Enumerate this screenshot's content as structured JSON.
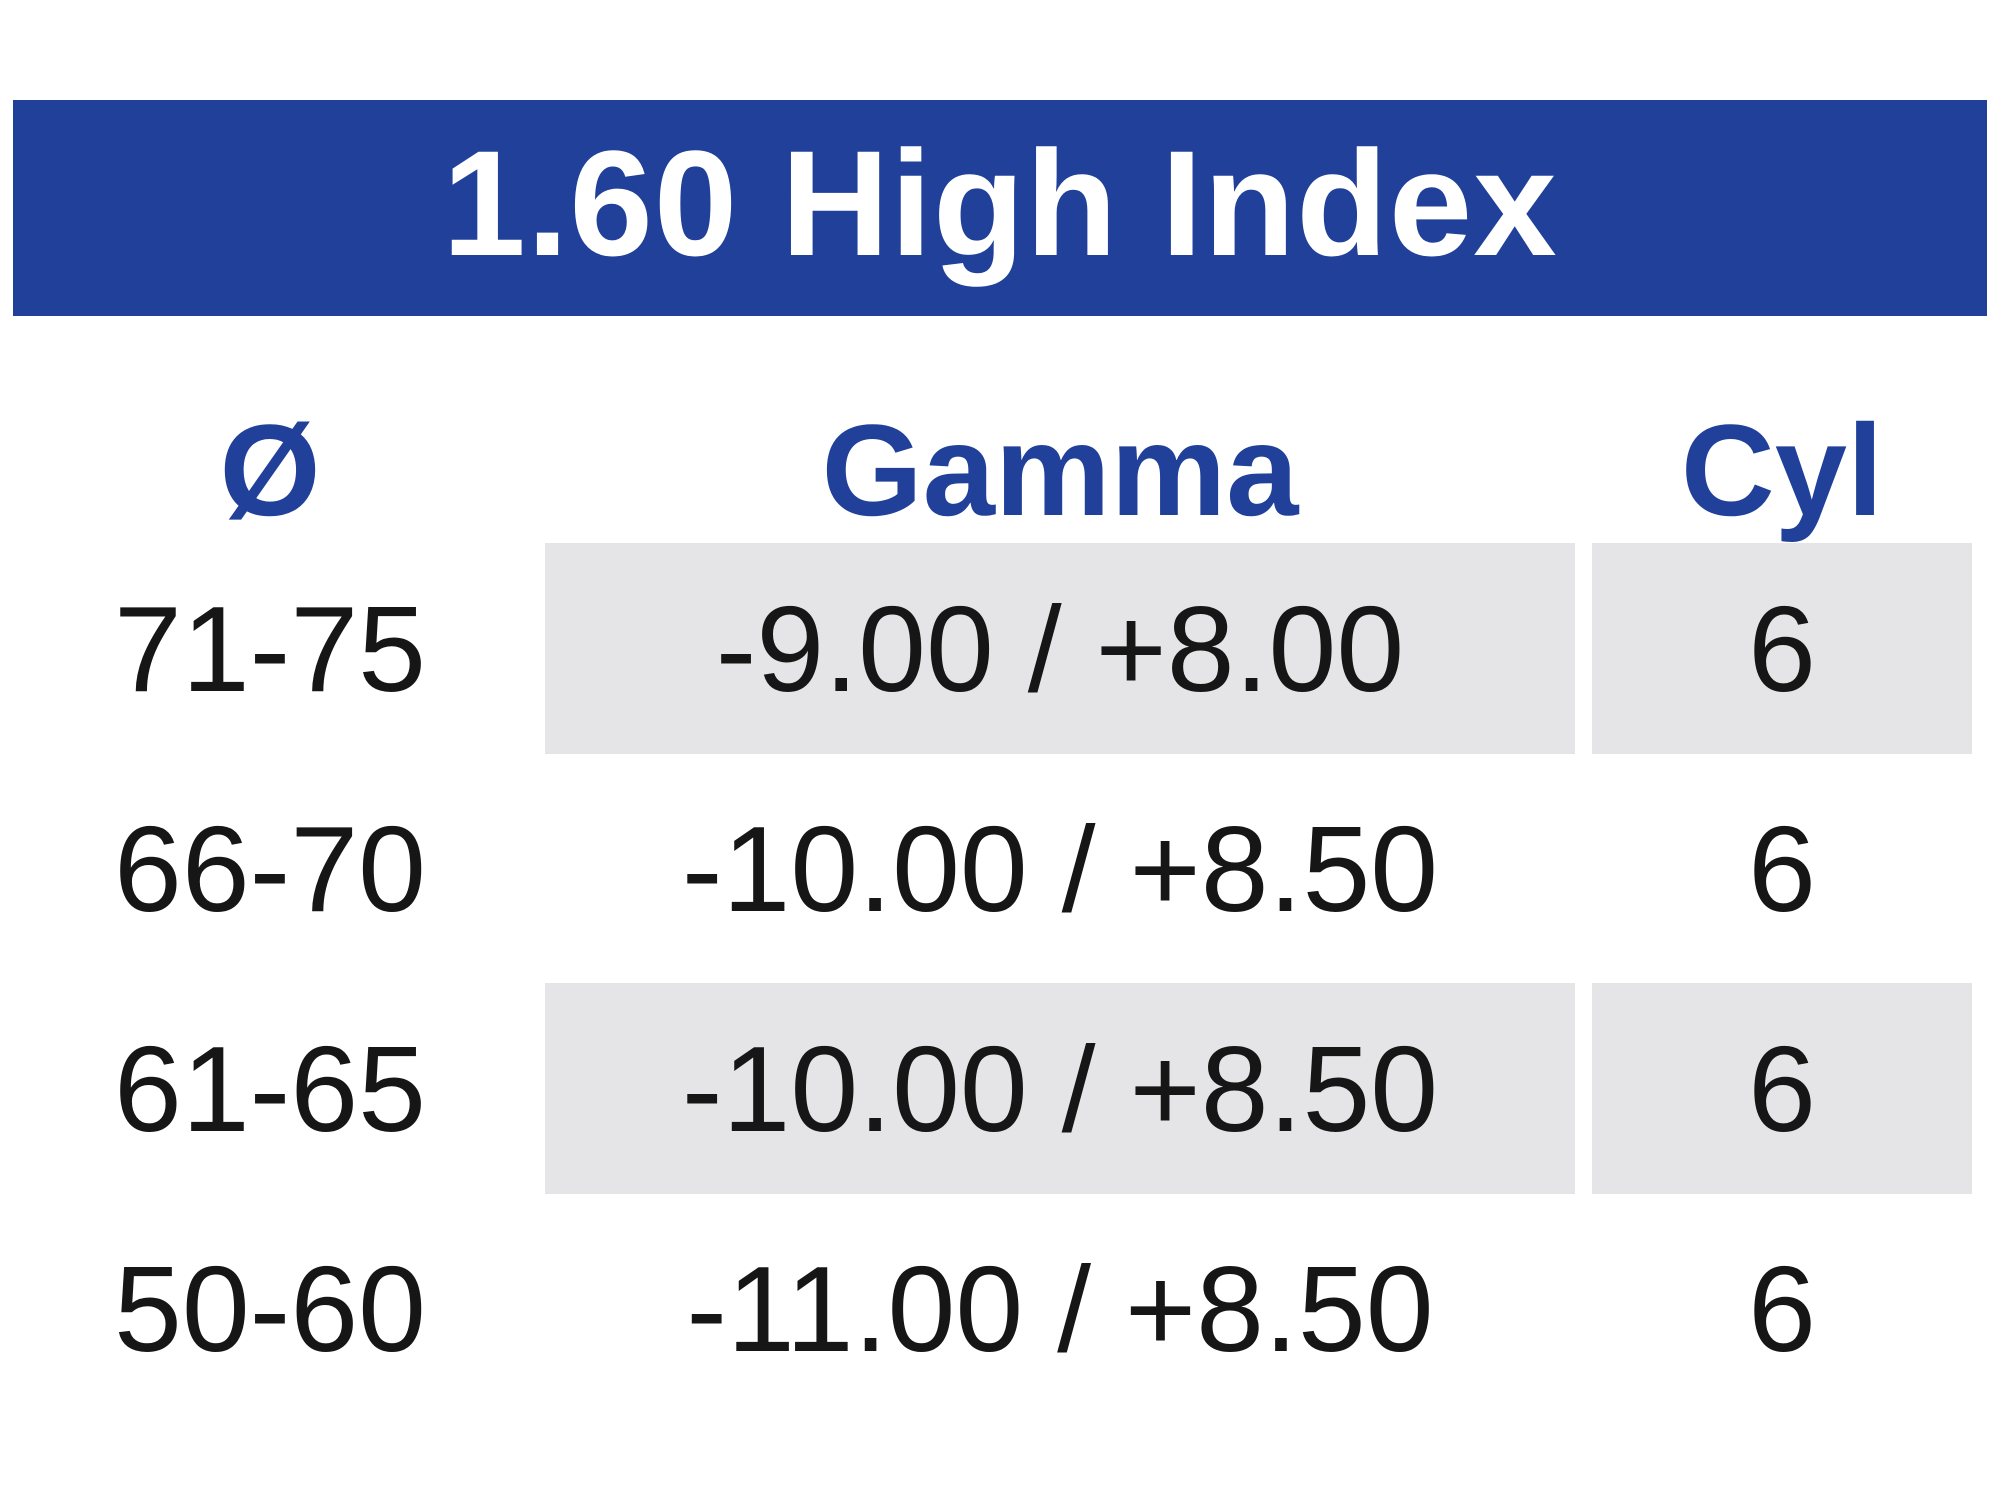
{
  "table": {
    "title": "1.60 High Index",
    "columns": [
      {
        "key": "diameter",
        "label": "Ø"
      },
      {
        "key": "gamma",
        "label": "Gamma"
      },
      {
        "key": "cyl",
        "label": "Cyl"
      }
    ],
    "rows": [
      {
        "diameter": "71-75",
        "gamma": "-9.00 / +8.00",
        "cyl": "6"
      },
      {
        "diameter": "66-70",
        "gamma": "-10.00 / +8.50",
        "cyl": "6"
      },
      {
        "diameter": "61-65",
        "gamma": "-10.00 / +8.50",
        "cyl": "6"
      },
      {
        "diameter": "50-60",
        "gamma": "-11.00 / +8.50",
        "cyl": "6"
      }
    ]
  },
  "colors": {
    "banner_blue": "#21409A",
    "header_text_blue": "#21409A",
    "row_shade_gray": "#E5E5E7",
    "text_black": "#161616",
    "background": "#FFFFFF"
  },
  "chart_data": {
    "type": "table",
    "title": "1.60 High Index",
    "columns": [
      "Ø",
      "Gamma",
      "Cyl"
    ],
    "rows": [
      [
        "71-75",
        "-9.00 / +8.00",
        "6"
      ],
      [
        "66-70",
        "-10.00 / +8.50",
        "6"
      ],
      [
        "61-65",
        "-10.00 / +8.50",
        "6"
      ],
      [
        "50-60",
        "-11.00 / +8.50",
        "6"
      ]
    ]
  }
}
